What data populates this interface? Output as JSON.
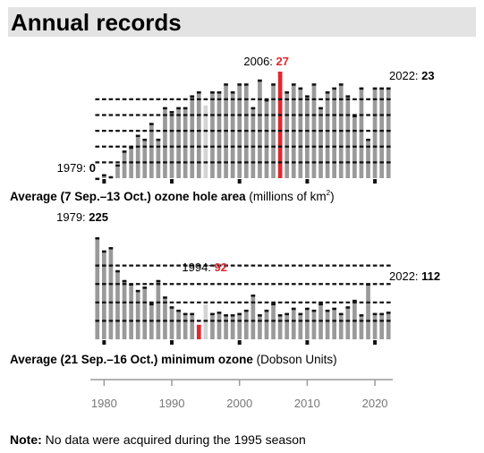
{
  "title": "Annual records",
  "note": {
    "label": "Note:",
    "text": "No data were acquired during the 1995 season"
  },
  "colors": {
    "bar": "#9a9a9a",
    "highlight": "#e0282e",
    "missing": "#d4d4d4",
    "stripe": "#111111",
    "title_bg": "#e3e3e3"
  },
  "x_axis": {
    "ticks": [
      "1980",
      "1990",
      "2000",
      "2010",
      "2020"
    ],
    "tick_values": [
      1980,
      1990,
      2000,
      2010,
      2020
    ]
  },
  "chart_data": [
    {
      "type": "bar",
      "title": "Average (7 Sep.–13 Oct.) ozone hole area",
      "units": "millions of km²",
      "label_bold": "Average (7 Sep.–13 Oct.) ozone hole area",
      "label_units": "(millions of km",
      "label_units_sup": "2",
      "label_units_end": ")",
      "ylim": [
        0,
        27
      ],
      "gridlines": [
        4,
        8,
        12,
        16,
        20
      ],
      "missing_year": 1995,
      "annotations": [
        {
          "year": 1979,
          "prefix": "1979: ",
          "value": "0"
        },
        {
          "year": 2006,
          "prefix": "2006: ",
          "value": "27",
          "highlight": true
        },
        {
          "year": 2022,
          "prefix": "2022: ",
          "value": "23"
        }
      ],
      "years": [
        1979,
        1980,
        1981,
        1982,
        1983,
        1984,
        1985,
        1986,
        1987,
        1988,
        1989,
        1990,
        1991,
        1992,
        1993,
        1994,
        1995,
        1996,
        1997,
        1998,
        1999,
        2000,
        2001,
        2002,
        2003,
        2004,
        2005,
        2006,
        2007,
        2008,
        2009,
        2010,
        2011,
        2012,
        2013,
        2014,
        2015,
        2016,
        2017,
        2018,
        2019,
        2020,
        2021,
        2022
      ],
      "values": [
        0.1,
        1,
        0.5,
        3.5,
        7,
        8,
        11,
        10,
        14,
        10,
        18,
        17,
        18,
        18,
        21,
        22,
        null,
        22,
        22,
        24,
        22,
        24,
        24,
        18,
        25,
        20,
        24,
        27,
        22,
        24,
        23,
        21,
        24,
        18,
        22,
        23,
        24,
        21,
        16,
        23,
        10,
        23,
        23,
        23
      ]
    },
    {
      "type": "bar",
      "title": "Average (21 Sep.–16 Oct.) minimum ozone",
      "units": "Dobson Units",
      "label_bold": "Average (21 Sep.–16 Oct.) minimum ozone",
      "label_units": "(Dobson Units)",
      "ylim": [
        70,
        225
      ],
      "gridlines": [
        98,
        126,
        154,
        182
      ],
      "missing_year": 1995,
      "annotations": [
        {
          "year": 1979,
          "prefix": "1979: ",
          "value": "225"
        },
        {
          "year": 1994,
          "prefix": "1994: ",
          "value": "92",
          "highlight": true
        },
        {
          "year": 2022,
          "prefix": "2022: ",
          "value": "112"
        }
      ],
      "years": [
        1979,
        1980,
        1981,
        1982,
        1983,
        1984,
        1985,
        1986,
        1987,
        1988,
        1989,
        1990,
        1991,
        1992,
        1993,
        1994,
        1995,
        1996,
        1997,
        1998,
        1999,
        2000,
        2001,
        2002,
        2003,
        2004,
        2005,
        2006,
        2007,
        2008,
        2009,
        2010,
        2011,
        2012,
        2013,
        2014,
        2015,
        2016,
        2017,
        2018,
        2019,
        2020,
        2021,
        2022
      ],
      "values": [
        225,
        205,
        210,
        175,
        160,
        155,
        145,
        150,
        125,
        160,
        135,
        120,
        115,
        110,
        110,
        92,
        null,
        110,
        112,
        108,
        108,
        110,
        115,
        138,
        108,
        115,
        125,
        108,
        110,
        118,
        110,
        118,
        115,
        125,
        115,
        118,
        110,
        120,
        130,
        108,
        155,
        110,
        110,
        112
      ]
    }
  ]
}
